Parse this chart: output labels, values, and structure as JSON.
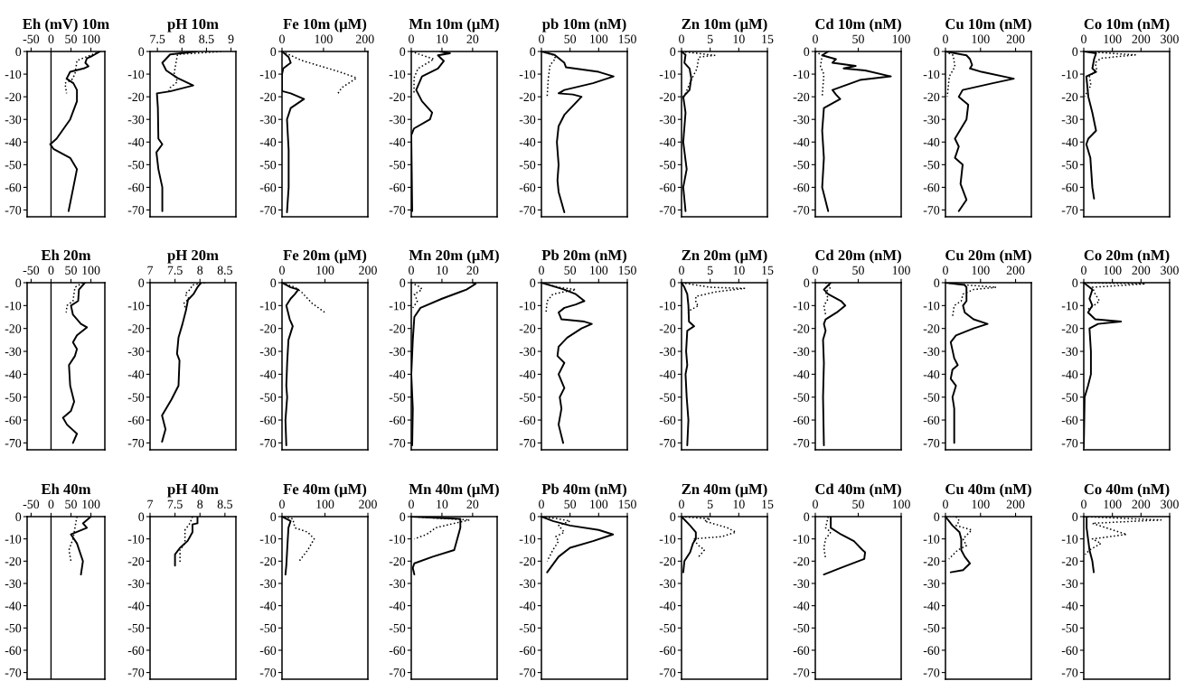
{
  "chart_data": [
    {
      "type": "line",
      "title": "Eh (mV) 10m",
      "xlim": [
        -60,
        135
      ],
      "xticks": [
        -50,
        0,
        50,
        100
      ],
      "ylim": [
        -73,
        0
      ],
      "yticks": [
        0,
        -10,
        -20,
        -30,
        -40,
        -50,
        -60,
        -70
      ],
      "ref_lines": [
        {
          "axis": "x",
          "value": 0,
          "color": "#000000"
        }
      ],
      "series": [
        {
          "color": "#000000",
          "line_style": "solid",
          "x": [
            123,
            103,
            90,
            86,
            94,
            82,
            48,
            39,
            56,
            65,
            65,
            48,
            14,
            -2,
            6,
            48,
            65,
            56,
            44
          ],
          "values": [
            0,
            -2,
            -3,
            -5,
            -6.5,
            -7.5,
            -9,
            -12,
            -14,
            -17,
            -22,
            -30,
            -38.5,
            -41,
            -43,
            -47,
            -52,
            -60,
            -70.5
          ]
        },
        {
          "color": "#000000",
          "line_style": "dotted",
          "x": [
            123,
            65,
            60,
            52,
            35,
            39
          ],
          "values": [
            0,
            -4,
            -10,
            -12.5,
            -14,
            -18.5
          ]
        }
      ]
    },
    {
      "type": "line",
      "title": "pH 10m",
      "xlim": [
        7.35,
        9.1
      ],
      "xticks": [
        7.5,
        8,
        8.5,
        9
      ],
      "ylim": [
        -73,
        0
      ],
      "yticks": [
        0,
        -10,
        -20,
        -30,
        -40,
        -50,
        -60,
        -70
      ],
      "series": [
        {
          "color": "#000000",
          "line_style": "solid",
          "x": [
            8.3,
            7.76,
            7.6,
            7.68,
            7.91,
            8.23,
            7.76,
            7.49,
            7.51,
            7.52,
            7.6,
            7.48,
            7.52,
            7.6,
            7.6
          ],
          "values": [
            0,
            -1.3,
            -5,
            -8.4,
            -11.7,
            -15,
            -17.6,
            -18.5,
            -25,
            -38.5,
            -41,
            -44.5,
            -52,
            -60,
            -70.5
          ]
        },
        {
          "color": "#000000",
          "line_style": "dotted",
          "x": [
            8.8,
            7.91,
            7.87,
            7.84,
            7.91,
            7.76,
            7.72
          ],
          "values": [
            0,
            -1.3,
            -6,
            -10,
            -13.4,
            -16,
            -18.5
          ]
        }
      ]
    },
    {
      "type": "line",
      "title": "Fe 10m (μM)",
      "xlim": [
        0,
        207
      ],
      "xticks": [
        0,
        100,
        200
      ],
      "ylim": [
        -73,
        0
      ],
      "yticks": [
        0,
        -10,
        -20,
        -30,
        -40,
        -50,
        -60,
        -70
      ],
      "series": [
        {
          "color": "#000000",
          "line_style": "solid",
          "x": [
            0,
            16,
            21,
            3,
            0,
            0,
            21,
            53,
            21,
            12,
            16,
            16,
            12
          ],
          "values": [
            0,
            -2.5,
            -5,
            -7.5,
            -10,
            -17.5,
            -18.5,
            -21,
            -25,
            -30,
            -43.5,
            -60,
            -71
          ]
        },
        {
          "color": "#000000",
          "line_style": "dotted",
          "x": [
            0,
            48,
            139,
            180,
            144,
            135
          ],
          "values": [
            0,
            -4,
            -9,
            -11.7,
            -16,
            -18.5
          ]
        }
      ]
    },
    {
      "type": "line",
      "title": "Mn 10m (μM)",
      "xlim": [
        0,
        28
      ],
      "xticks": [
        0,
        10,
        20
      ],
      "ylim": [
        -73,
        0
      ],
      "yticks": [
        0,
        -10,
        -20,
        -30,
        -40,
        -50,
        -60,
        -70
      ],
      "series": [
        {
          "color": "#000000",
          "line_style": "solid",
          "x": [
            9.4,
            12.6,
            8.7,
            10.6,
            8.7,
            3.5,
            1.6,
            3.5,
            6.8,
            6.1,
            0.9,
            0,
            0.3
          ],
          "values": [
            0,
            -0.8,
            -1.7,
            -4.2,
            -7.5,
            -11,
            -17,
            -22,
            -27,
            -30,
            -34,
            -37,
            -70.5
          ]
        },
        {
          "color": "#000000",
          "line_style": "dotted",
          "x": [
            0,
            7.4,
            2.2,
            0.9,
            0.9
          ],
          "values": [
            0,
            -3.4,
            -7.5,
            -11.7,
            -18.5
          ]
        }
      ]
    },
    {
      "type": "line",
      "title": "pb 10m (nM)",
      "xlim": [
        0,
        150
      ],
      "xticks": [
        0,
        50,
        100,
        150
      ],
      "ylim": [
        -73,
        0
      ],
      "yticks": [
        0,
        -10,
        -20,
        -30,
        -40,
        -50,
        -60,
        -70
      ],
      "series": [
        {
          "color": "#000000",
          "line_style": "solid",
          "x": [
            0,
            23,
            40,
            43,
            100,
            126,
            90,
            40,
            30,
            55,
            70,
            55,
            40,
            30,
            27,
            30,
            28,
            30,
            40
          ],
          "values": [
            0,
            -1.5,
            -5,
            -7,
            -9,
            -11,
            -14,
            -17,
            -18.5,
            -19,
            -20,
            -24,
            -28,
            -33,
            -40,
            -50,
            -57,
            -62,
            -71
          ]
        },
        {
          "color": "#000000",
          "line_style": "dotted",
          "x": [
            0,
            20,
            25,
            15,
            12,
            10
          ],
          "values": [
            0,
            -1.5,
            -3,
            -6,
            -12,
            -20
          ]
        }
      ]
    },
    {
      "type": "line",
      "title": "Zn 10m (μM)",
      "xlim": [
        0,
        15
      ],
      "xticks": [
        0,
        5,
        10,
        15
      ],
      "ylim": [
        -73,
        0
      ],
      "yticks": [
        0,
        -10,
        -20,
        -30,
        -40,
        -50,
        -60,
        -70
      ],
      "series": [
        {
          "color": "#000000",
          "line_style": "solid",
          "x": [
            0,
            0.7,
            0.5,
            1.4,
            1.7,
            1.4,
            0.3,
            0.7,
            0.3,
            0.9,
            0.3,
            0.7
          ],
          "values": [
            0,
            -1.5,
            -5,
            -7.5,
            -11.7,
            -17,
            -20,
            -27,
            -40,
            -52,
            -60,
            -70.5
          ]
        },
        {
          "color": "#000000",
          "line_style": "dotted",
          "x": [
            0,
            5.8,
            3,
            2.7,
            1.7,
            0.7,
            0.5
          ],
          "values": [
            0,
            -1.7,
            -2.5,
            -7.5,
            -12.6,
            -18.5,
            -20
          ]
        }
      ]
    },
    {
      "type": "line",
      "title": "Cd 10m (nM)",
      "xlim": [
        0,
        100
      ],
      "xticks": [
        0,
        50,
        100
      ],
      "ylim": [
        -73,
        0
      ],
      "yticks": [
        0,
        -10,
        -20,
        -30,
        -40,
        -50,
        -60,
        -70
      ],
      "series": [
        {
          "color": "#000000",
          "line_style": "solid",
          "x": [
            15,
            8,
            24,
            20,
            47,
            33,
            58,
            88,
            52,
            20,
            24,
            29,
            10,
            8,
            10,
            8,
            15
          ],
          "values": [
            0,
            -1.7,
            -3.4,
            -5,
            -6.4,
            -7.5,
            -8.4,
            -11,
            -12.6,
            -17,
            -19,
            -21,
            -25,
            -35,
            -47,
            -60,
            -70.5
          ]
        },
        {
          "color": "#000000",
          "line_style": "dotted",
          "x": [
            0,
            8,
            6,
            10,
            8
          ],
          "values": [
            0,
            -1.7,
            -6.7,
            -10,
            -20
          ]
        }
      ]
    },
    {
      "type": "line",
      "title": "Cu 10m (nM)",
      "xlim": [
        0,
        245
      ],
      "xticks": [
        0,
        100,
        200
      ],
      "ylim": [
        -73,
        0
      ],
      "yticks": [
        0,
        -10,
        -20,
        -30,
        -40,
        -50,
        -60,
        -70
      ],
      "series": [
        {
          "color": "#000000",
          "line_style": "solid",
          "x": [
            0,
            60,
            70,
            76,
            70,
            103,
            195,
            135,
            49,
            38,
            65,
            60,
            27,
            38,
            27,
            49,
            43,
            60,
            38
          ],
          "values": [
            0,
            -1.7,
            -3.4,
            -6,
            -7.5,
            -9,
            -12,
            -14,
            -17,
            -20,
            -23.5,
            -30,
            -38.5,
            -42,
            -47,
            -50,
            -58.5,
            -65.5,
            -70.5
          ]
        },
        {
          "color": "#000000",
          "line_style": "dotted",
          "x": [
            0,
            22,
            27,
            11,
            5
          ],
          "values": [
            0,
            -1.7,
            -6.7,
            -11,
            -20
          ]
        }
      ]
    },
    {
      "type": "line",
      "title": "Co 10m (nM)",
      "xlim": [
        0,
        300
      ],
      "xticks": [
        0,
        100,
        200,
        300
      ],
      "ylim": [
        -73,
        0
      ],
      "yticks": [
        0,
        -10,
        -20,
        -30,
        -40,
        -50,
        -60,
        -70
      ],
      "series": [
        {
          "color": "#000000",
          "line_style": "solid",
          "x": [
            3,
            43,
            36,
            30,
            43,
            9,
            16,
            30,
            43,
            16,
            9,
            23,
            30,
            36
          ],
          "values": [
            0,
            -0.8,
            -3.4,
            -7.5,
            -9,
            -11,
            -20,
            -27,
            -35,
            -38.5,
            -41,
            -47,
            -60,
            -65
          ]
        },
        {
          "color": "#000000",
          "line_style": "dotted",
          "x": [
            0,
            180,
            60,
            40,
            45,
            20,
            25,
            10,
            5
          ],
          "values": [
            0,
            -1.5,
            -3,
            -5,
            -8,
            -11,
            -15,
            -18,
            -20
          ]
        }
      ]
    },
    {
      "type": "line",
      "title": "Eh 20m",
      "xlim": [
        -60,
        135
      ],
      "xticks": [
        -50,
        0,
        50,
        100
      ],
      "ylim": [
        -73,
        0
      ],
      "yticks": [
        0,
        -10,
        -20,
        -30,
        -40,
        -50,
        -60,
        -70
      ],
      "ref_lines": [
        {
          "axis": "x",
          "value": 0,
          "color": "#000000"
        }
      ],
      "series": [
        {
          "color": "#000000",
          "line_style": "solid",
          "x": [
            85,
            70,
            68,
            50,
            55,
            75,
            90,
            65,
            55,
            65,
            60,
            45,
            48,
            58,
            50,
            30,
            40,
            65,
            55
          ],
          "values": [
            0,
            -3,
            -8,
            -10,
            -14,
            -18,
            -19.5,
            -23,
            -26,
            -29,
            -32,
            -36,
            -45,
            -52,
            -56,
            -59,
            -62,
            -66,
            -70
          ]
        },
        {
          "color": "#000000",
          "line_style": "dotted",
          "x": [
            80,
            60,
            55,
            40,
            38
          ],
          "values": [
            0,
            -2,
            -8,
            -10,
            -13
          ]
        }
      ]
    },
    {
      "type": "line",
      "title": "pH 20m",
      "xlim": [
        7,
        8.72
      ],
      "xticks": [
        7,
        7.5,
        8,
        8.5
      ],
      "ylim": [
        -73,
        0
      ],
      "yticks": [
        0,
        -10,
        -20,
        -30,
        -40,
        -50,
        -60,
        -70
      ],
      "series": [
        {
          "color": "#000000",
          "line_style": "solid",
          "x": [
            8.02,
            7.95,
            7.87,
            7.76,
            7.72,
            7.65,
            7.57,
            7.54,
            7.59,
            7.57,
            7.43,
            7.24,
            7.31,
            7.24
          ],
          "values": [
            0,
            -2,
            -5,
            -7.5,
            -12,
            -18,
            -24,
            -31,
            -34,
            -45,
            -51,
            -58,
            -64,
            -69.5
          ]
        },
        {
          "color": "#000000",
          "line_style": "dotted",
          "x": [
            8.1,
            7.85,
            7.8,
            7.7,
            7.78,
            7.68,
            7.72
          ],
          "values": [
            0,
            -1,
            -3,
            -5,
            -7,
            -9,
            -12
          ]
        }
      ]
    },
    {
      "type": "line",
      "title": "Fe 20m (μM)",
      "xlim": [
        0,
        200
      ],
      "xticks": [
        0,
        100,
        200
      ],
      "ylim": [
        -73,
        0
      ],
      "yticks": [
        0,
        -10,
        -20,
        -30,
        -40,
        -50,
        -60,
        -70
      ],
      "series": [
        {
          "color": "#000000",
          "line_style": "solid",
          "x": [
            0,
            20,
            38,
            30,
            20,
            10,
            18,
            25,
            15,
            12,
            10,
            12,
            8,
            10
          ],
          "values": [
            0,
            -2,
            -3,
            -5,
            -7,
            -10,
            -16,
            -19,
            -25,
            -35,
            -45,
            -50,
            -60,
            -71
          ]
        },
        {
          "color": "#000000",
          "line_style": "dotted",
          "x": [
            0,
            30,
            45,
            60,
            70,
            100
          ],
          "values": [
            0,
            -2,
            -4,
            -7,
            -9,
            -13
          ]
        }
      ]
    },
    {
      "type": "line",
      "title": "Mn 20m (μM)",
      "xlim": [
        0,
        28
      ],
      "xticks": [
        0,
        10,
        20
      ],
      "ylim": [
        -73,
        0
      ],
      "yticks": [
        0,
        -10,
        -20,
        -30,
        -40,
        -50,
        -60,
        -70
      ],
      "series": [
        {
          "color": "#000000",
          "line_style": "solid",
          "x": [
            20,
            21,
            18,
            10,
            3,
            1,
            0.5,
            0,
            0.5,
            0.3
          ],
          "values": [
            0,
            -0.5,
            -3,
            -7,
            -11,
            -15,
            -25,
            -40,
            -55,
            -71
          ]
        },
        {
          "color": "#000000",
          "line_style": "dotted",
          "x": [
            0,
            3,
            3.5,
            1,
            2,
            0.5
          ],
          "values": [
            0,
            -2,
            -3,
            -5,
            -8,
            -11
          ]
        }
      ]
    },
    {
      "type": "line",
      "title": "Pb 20m (nM)",
      "xlim": [
        0,
        150
      ],
      "xticks": [
        0,
        50,
        100,
        150
      ],
      "ylim": [
        -73,
        0
      ],
      "yticks": [
        0,
        -10,
        -20,
        -30,
        -40,
        -50,
        -60,
        -70
      ],
      "series": [
        {
          "color": "#000000",
          "line_style": "solid",
          "x": [
            0,
            40,
            60,
            75,
            60,
            40,
            30,
            35,
            75,
            88,
            70,
            45,
            30,
            28,
            40,
            30,
            40,
            32,
            35,
            30,
            38
          ],
          "values": [
            0,
            -3,
            -5,
            -8,
            -9.5,
            -11,
            -13,
            -16,
            -17,
            -18,
            -20,
            -24,
            -28,
            -32,
            -35,
            -40,
            -46,
            -50,
            -55,
            -62,
            -70
          ]
        },
        {
          "color": "#000000",
          "line_style": "dotted",
          "x": [
            0,
            30,
            60,
            20,
            10,
            8
          ],
          "values": [
            0,
            -2,
            -3,
            -5,
            -8,
            -13
          ]
        }
      ]
    },
    {
      "type": "line",
      "title": "Zn 20m (μM)",
      "xlim": [
        0,
        15
      ],
      "xticks": [
        0,
        5,
        10,
        15
      ],
      "ylim": [
        -73,
        0
      ],
      "yticks": [
        0,
        -10,
        -20,
        -30,
        -40,
        -50,
        -60,
        -70
      ],
      "series": [
        {
          "color": "#000000",
          "line_style": "solid",
          "x": [
            0,
            0.5,
            1,
            1.2,
            1.3,
            2.2,
            1,
            0.8,
            1,
            0.7,
            0.9,
            1.2,
            1
          ],
          "values": [
            0,
            -2,
            -5,
            -10,
            -17,
            -19,
            -21,
            -30,
            -36,
            -40,
            -50,
            -60,
            -71
          ]
        },
        {
          "color": "#000000",
          "line_style": "dotted",
          "x": [
            0,
            5,
            11,
            6,
            2.5,
            2.5,
            3,
            1.5,
            1
          ],
          "values": [
            0,
            -2,
            -2.5,
            -4,
            -6,
            -9,
            -10,
            -12,
            -14
          ]
        }
      ]
    },
    {
      "type": "line",
      "title": "Cd 20m (nM)",
      "xlim": [
        0,
        100
      ],
      "xticks": [
        0,
        50,
        100
      ],
      "ylim": [
        -73,
        0
      ],
      "yticks": [
        0,
        -10,
        -20,
        -30,
        -40,
        -50,
        -60,
        -70
      ],
      "series": [
        {
          "color": "#000000",
          "line_style": "solid",
          "x": [
            18,
            10,
            15,
            30,
            35,
            25,
            12,
            10,
            12,
            9,
            10,
            9,
            10
          ],
          "values": [
            0,
            -3,
            -5,
            -8,
            -10,
            -13,
            -16,
            -18,
            -21,
            -25,
            -35,
            -50,
            -71
          ]
        },
        {
          "color": "#000000",
          "line_style": "dotted",
          "x": [
            12,
            18,
            12,
            15,
            10,
            12
          ],
          "values": [
            0,
            -2,
            -4,
            -7,
            -10,
            -14
          ]
        }
      ]
    },
    {
      "type": "line",
      "title": "Cu 20m (nM)",
      "xlim": [
        0,
        245
      ],
      "xticks": [
        0,
        100,
        200
      ],
      "ylim": [
        -73,
        0
      ],
      "yticks": [
        0,
        -10,
        -20,
        -30,
        -40,
        -50,
        -60,
        -70
      ],
      "series": [
        {
          "color": "#000000",
          "line_style": "solid",
          "x": [
            0,
            55,
            60,
            60,
            50,
            55,
            80,
            120,
            80,
            30,
            15,
            25,
            35,
            20,
            15,
            30,
            20,
            25,
            25
          ],
          "values": [
            0,
            -1,
            -2,
            -8,
            -10,
            -13,
            -16,
            -18,
            -20,
            -23,
            -26,
            -33,
            -36,
            -38,
            -42,
            -45,
            -50,
            -55,
            -70
          ]
        },
        {
          "color": "#000000",
          "line_style": "dotted",
          "x": [
            0,
            60,
            145,
            80,
            50,
            45,
            25,
            20
          ],
          "values": [
            0,
            -1,
            -2,
            -3,
            -5,
            -8,
            -10,
            -15
          ]
        }
      ]
    },
    {
      "type": "line",
      "title": "Co 20m (nM)",
      "xlim": [
        0,
        300
      ],
      "xticks": [
        0,
        100,
        200,
        300
      ],
      "ylim": [
        -73,
        0
      ],
      "yticks": [
        0,
        -10,
        -20,
        -30,
        -40,
        -50,
        -60,
        -70
      ],
      "series": [
        {
          "color": "#000000",
          "line_style": "solid",
          "x": [
            0,
            30,
            20,
            30,
            15,
            40,
            130,
            50,
            20,
            25,
            25,
            15,
            3,
            0
          ],
          "values": [
            0,
            -3,
            -7,
            -10,
            -13,
            -16,
            -17,
            -18,
            -20,
            -30,
            -40,
            -45,
            -50,
            -72
          ]
        },
        {
          "color": "#000000",
          "line_style": "dotted",
          "x": [
            0,
            215,
            30,
            40,
            55,
            35,
            10
          ],
          "values": [
            0,
            -0.5,
            -2,
            -5,
            -8,
            -10,
            -12
          ]
        }
      ]
    },
    {
      "type": "line",
      "title": "Eh 40m",
      "xlim": [
        -60,
        135
      ],
      "xticks": [
        -50,
        0,
        50,
        100
      ],
      "ylim": [
        -73,
        0
      ],
      "yticks": [
        0,
        -10,
        -20,
        -30,
        -40,
        -50,
        -60,
        -70
      ],
      "ref_lines": [
        {
          "axis": "x",
          "value": 0,
          "color": "#000000"
        }
      ],
      "series": [
        {
          "color": "#000000",
          "line_style": "solid",
          "x": [
            100,
            80,
            90,
            50,
            65,
            80,
            75
          ],
          "values": [
            0,
            -3,
            -5,
            -8,
            -12,
            -20,
            -26
          ]
        },
        {
          "color": "#000000",
          "line_style": "dotted",
          "x": [
            65,
            60,
            55,
            45,
            50
          ],
          "values": [
            0,
            -5,
            -10,
            -15,
            -20
          ]
        }
      ]
    },
    {
      "type": "line",
      "title": "pH 40m",
      "xlim": [
        7,
        8.72
      ],
      "xticks": [
        7,
        7.5,
        8,
        8.5
      ],
      "ylim": [
        -73,
        0
      ],
      "yticks": [
        0,
        -10,
        -20,
        -30,
        -40,
        -50,
        -60,
        -70
      ],
      "series": [
        {
          "color": "#000000",
          "line_style": "solid",
          "x": [
            7.95,
            7.95,
            7.85,
            7.85,
            7.8,
            7.75,
            7.6,
            7.5,
            7.5
          ],
          "values": [
            0,
            -3,
            -3.5,
            -7,
            -9,
            -11,
            -14,
            -17,
            -22
          ]
        },
        {
          "color": "#000000",
          "line_style": "dotted",
          "x": [
            7.85,
            7.8,
            7.7,
            7.7,
            7.6,
            7.6
          ],
          "values": [
            0,
            -3,
            -6,
            -12,
            -15,
            -21
          ]
        }
      ]
    },
    {
      "type": "line",
      "title": "Fe 40m (μM)",
      "xlim": [
        0,
        200
      ],
      "xticks": [
        0,
        100,
        200
      ],
      "ylim": [
        -73,
        0
      ],
      "yticks": [
        0,
        -10,
        -20,
        -30,
        -40,
        -50,
        -60,
        -70
      ],
      "series": [
        {
          "color": "#000000",
          "line_style": "solid",
          "x": [
            0,
            20,
            15,
            12,
            10,
            8
          ],
          "values": [
            0,
            -2,
            -5,
            -15,
            -22,
            -26
          ]
        },
        {
          "color": "#000000",
          "line_style": "dotted",
          "x": [
            5,
            25,
            30,
            60,
            75,
            60,
            40
          ],
          "values": [
            0,
            -1,
            -5,
            -7,
            -10,
            -15,
            -20
          ]
        }
      ]
    },
    {
      "type": "line",
      "title": "Mn 40m (μM)",
      "xlim": [
        0,
        28
      ],
      "xticks": [
        0,
        10,
        20
      ],
      "ylim": [
        -73,
        0
      ],
      "yticks": [
        0,
        -10,
        -20,
        -30,
        -40,
        -50,
        -60,
        -70
      ],
      "series": [
        {
          "color": "#000000",
          "line_style": "solid",
          "x": [
            0,
            16,
            16,
            15,
            14,
            7,
            1,
            0.5,
            1
          ],
          "values": [
            0,
            -1,
            -5,
            -10,
            -15,
            -18,
            -21,
            -23,
            -26
          ]
        },
        {
          "color": "#000000",
          "line_style": "dotted",
          "x": [
            0,
            19,
            14,
            8,
            5,
            1
          ],
          "values": [
            0,
            -1.5,
            -3,
            -5,
            -8,
            -10
          ]
        }
      ]
    },
    {
      "type": "line",
      "title": "Pb 40m (nM)",
      "xlim": [
        0,
        150
      ],
      "xticks": [
        0,
        50,
        100,
        150
      ],
      "ylim": [
        -73,
        0
      ],
      "yticks": [
        0,
        -10,
        -20,
        -30,
        -40,
        -50,
        -60,
        -70
      ],
      "series": [
        {
          "color": "#000000",
          "line_style": "solid",
          "x": [
            0,
            20,
            50,
            100,
            125,
            90,
            50,
            30,
            10
          ],
          "values": [
            0,
            -2,
            -4,
            -6,
            -8,
            -11,
            -14,
            -18,
            -25
          ]
        },
        {
          "color": "#000000",
          "line_style": "dotted",
          "x": [
            0,
            30,
            50,
            30,
            40,
            25,
            30,
            20,
            10
          ],
          "values": [
            0,
            -1,
            -2,
            -4,
            -7,
            -9,
            -11,
            -15,
            -20
          ]
        }
      ]
    },
    {
      "type": "line",
      "title": "Zn 40m (μM)",
      "xlim": [
        0,
        15
      ],
      "xticks": [
        0,
        5,
        10,
        15
      ],
      "ylim": [
        -73,
        0
      ],
      "yticks": [
        0,
        -10,
        -20,
        -30,
        -40,
        -50,
        -60,
        -70
      ],
      "series": [
        {
          "color": "#000000",
          "line_style": "solid",
          "x": [
            0,
            1.5,
            2.5,
            2.5,
            2,
            1.5,
            0.5,
            0.3
          ],
          "values": [
            0,
            -4,
            -7,
            -10,
            -12,
            -16,
            -20,
            -25
          ]
        },
        {
          "color": "#000000",
          "line_style": "dotted",
          "x": [
            0,
            5,
            4,
            8,
            9.5,
            7,
            2,
            3,
            4,
            3
          ],
          "values": [
            0,
            -1,
            -2,
            -5,
            -7,
            -9,
            -10,
            -13,
            -15,
            -18
          ]
        }
      ]
    },
    {
      "type": "line",
      "title": "Cd 40m (nM)",
      "xlim": [
        0,
        100
      ],
      "xticks": [
        0,
        50,
        100
      ],
      "ylim": [
        -73,
        0
      ],
      "yticks": [
        0,
        -10,
        -20,
        -30,
        -40,
        -50,
        -60,
        -70
      ],
      "series": [
        {
          "color": "#000000",
          "line_style": "solid",
          "x": [
            18,
            18,
            30,
            45,
            55,
            58,
            57,
            50,
            30,
            10
          ],
          "values": [
            0,
            -5,
            -8,
            -11,
            -15,
            -16,
            -19,
            -20,
            -23,
            -26
          ]
        },
        {
          "color": "#000000",
          "line_style": "dotted",
          "x": [
            15,
            12,
            18,
            12,
            10,
            12
          ],
          "values": [
            0,
            -5,
            -7,
            -10,
            -14,
            -19
          ]
        }
      ]
    },
    {
      "type": "line",
      "title": "Cu 40m (nM)",
      "xlim": [
        0,
        245
      ],
      "xticks": [
        0,
        100,
        200
      ],
      "ylim": [
        -73,
        0
      ],
      "yticks": [
        0,
        -10,
        -20,
        -30,
        -40,
        -50,
        -60,
        -70
      ],
      "series": [
        {
          "color": "#000000",
          "line_style": "solid",
          "x": [
            0,
            20,
            40,
            45,
            45,
            55,
            70,
            50,
            15
          ],
          "values": [
            0,
            -4,
            -7,
            -10,
            -15,
            -18,
            -21,
            -24,
            -25
          ]
        },
        {
          "color": "#000000",
          "line_style": "dotted",
          "x": [
            30,
            40,
            30,
            75,
            50,
            60,
            35,
            10
          ],
          "values": [
            0,
            -2,
            -4,
            -6,
            -10,
            -13,
            -15,
            -19
          ]
        }
      ]
    },
    {
      "type": "line",
      "title": "Co 40m (nM)",
      "xlim": [
        0,
        300
      ],
      "xticks": [
        0,
        100,
        200,
        300
      ],
      "ylim": [
        -73,
        0
      ],
      "yticks": [
        0,
        -10,
        -20,
        -30,
        -40,
        -50,
        -60,
        -70
      ],
      "series": [
        {
          "color": "#000000",
          "line_style": "solid",
          "x": [
            10,
            10,
            15,
            20,
            30,
            35
          ],
          "values": [
            0,
            -5,
            -10,
            -15,
            -20,
            -25
          ]
        },
        {
          "color": "#000000",
          "line_style": "dotted",
          "x": [
            0,
            270,
            30,
            150,
            30,
            60,
            20,
            5
          ],
          "values": [
            0,
            -1.5,
            -3,
            -8,
            -10,
            -12,
            -15,
            -17
          ]
        }
      ]
    }
  ]
}
